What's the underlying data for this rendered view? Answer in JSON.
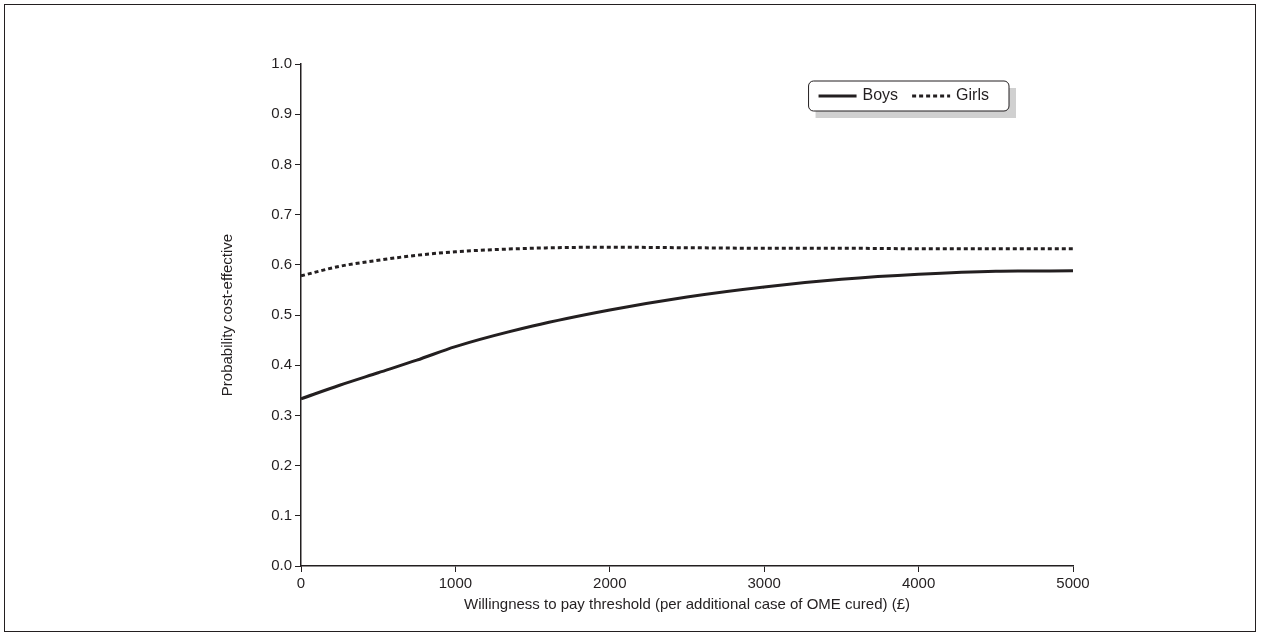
{
  "chart_data": {
    "type": "line",
    "xlabel": "Willingness to pay threshold (per additional case of OME cured) (£)",
    "ylabel": "Probability cost-effective",
    "x": [
      0,
      250,
      500,
      750,
      1000,
      1500,
      2000,
      2500,
      3000,
      3500,
      4000,
      4500,
      5000
    ],
    "series": [
      {
        "name": "Boys",
        "color": "#231f20",
        "line_style": "solid",
        "values": [
          0.333,
          0.36,
          0.385,
          0.41,
          0.437,
          0.478,
          0.51,
          0.536,
          0.556,
          0.571,
          0.581,
          0.587,
          0.588
        ]
      },
      {
        "name": "Girls",
        "color": "#231f20",
        "line_style": "dotted",
        "values": [
          0.578,
          0.597,
          0.609,
          0.619,
          0.626,
          0.633,
          0.635,
          0.634,
          0.633,
          0.633,
          0.632,
          0.632,
          0.632
        ]
      }
    ],
    "xlim": [
      0,
      5000
    ],
    "xticks": [
      0,
      1000,
      2000,
      3000,
      4000,
      5000
    ],
    "ylim": [
      0,
      1
    ],
    "yticks": [
      {
        "value": 0,
        "label": "0.0"
      },
      {
        "value": 0.1,
        "label": "0.1"
      },
      {
        "value": 0.2,
        "label": "0.2"
      },
      {
        "value": 0.3,
        "label": "0.3"
      },
      {
        "value": 0.4,
        "label": "0.4"
      },
      {
        "value": 0.5,
        "label": "0.5"
      },
      {
        "value": 0.6,
        "label": "0.6"
      },
      {
        "value": 0.7,
        "label": "0.7"
      },
      {
        "value": 0.8,
        "label": "0.8"
      },
      {
        "value": 0.9,
        "label": "0.9"
      },
      {
        "value": 1,
        "label": "1.0"
      }
    ],
    "legend": "top right"
  }
}
